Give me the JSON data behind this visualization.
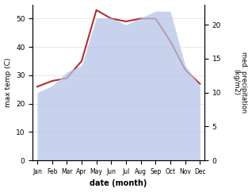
{
  "months": [
    "Jan",
    "Feb",
    "Mar",
    "Apr",
    "May",
    "Jun",
    "Jul",
    "Aug",
    "Sep",
    "Oct",
    "Nov",
    "Dec"
  ],
  "temp_max": [
    26,
    28,
    29,
    35,
    53,
    50,
    49,
    50,
    50,
    42,
    32,
    27
  ],
  "precipitation": [
    10,
    11,
    13,
    14,
    21,
    21,
    20,
    21,
    22,
    22,
    14,
    11
  ],
  "temp_color": "#b03030",
  "precip_fill_color": "#b8c4e8",
  "ylabel_left": "max temp (C)",
  "ylabel_right": "med. precipitation\n(kg/m2)",
  "xlabel": "date (month)",
  "ylim_left": [
    0,
    55
  ],
  "ylim_right": [
    0,
    23
  ],
  "yticks_left": [
    0,
    10,
    20,
    30,
    40,
    50
  ],
  "yticks_right": [
    0,
    5,
    10,
    15,
    20
  ],
  "background_color": "#ffffff"
}
